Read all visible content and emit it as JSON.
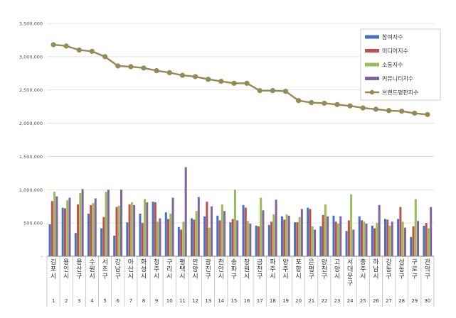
{
  "chart_data": {
    "type": "bar",
    "title": "",
    "xlabel": "",
    "ylabel": "",
    "ylim": [
      0,
      3500000
    ],
    "yticks": [
      0,
      500000,
      1000000,
      1500000,
      2000000,
      2500000,
      3000000,
      3500000
    ],
    "ytick_labels": [
      "-",
      "500,000",
      "1,000,000",
      "1,500,000",
      "2,000,000",
      "2,500,000",
      "3,000,000",
      "3,500,000"
    ],
    "grid": true,
    "legend_position": "top-right",
    "categories": [
      "김포시",
      "용인시",
      "용산구",
      "수원시",
      "서초구",
      "강남구",
      "아산시",
      "화성시",
      "청주시",
      "구리시",
      "평택시",
      "안양시",
      "광진구",
      "천안시",
      "송파구",
      "창원시",
      "금천구",
      "파주시",
      "양주시",
      "포항시",
      "은평구",
      "양천구",
      "고양시",
      "서대문구",
      "충주시",
      "하남시",
      "강동구",
      "성동구",
      "구로구",
      "관악구"
    ],
    "ranks": [
      "1",
      "2",
      "3",
      "4",
      "5",
      "6",
      "7",
      "8",
      "9",
      "10",
      "11",
      "12",
      "13",
      "14",
      "15",
      "16",
      "17",
      "18",
      "19",
      "20",
      "21",
      "22",
      "23",
      "24",
      "25",
      "26",
      "27",
      "28",
      "29",
      "30"
    ],
    "series": [
      {
        "name": "참여지수",
        "type": "bar",
        "color": "#4472c4",
        "values": [
          480000,
          730000,
          350000,
          640000,
          420000,
          310000,
          510000,
          640000,
          820000,
          660000,
          440000,
          570000,
          600000,
          610000,
          510000,
          770000,
          460000,
          470000,
          600000,
          510000,
          730000,
          450000,
          610000,
          380000,
          600000,
          460000,
          560000,
          560000,
          290000,
          460000
        ]
      },
      {
        "name": "미디어지수",
        "type": "bar",
        "color": "#c0504d",
        "values": [
          830000,
          720000,
          780000,
          770000,
          590000,
          740000,
          780000,
          500000,
          810000,
          560000,
          400000,
          550000,
          820000,
          540000,
          560000,
          730000,
          450000,
          520000,
          550000,
          510000,
          710000,
          620000,
          520000,
          540000,
          540000,
          420000,
          550000,
          740000,
          450000,
          500000
        ]
      },
      {
        "name": "소통지수",
        "type": "bar",
        "color": "#9bbb59",
        "values": [
          970000,
          840000,
          950000,
          800000,
          970000,
          760000,
          810000,
          860000,
          520000,
          640000,
          520000,
          680000,
          430000,
          780000,
          1000000,
          530000,
          880000,
          630000,
          630000,
          590000,
          450000,
          780000,
          490000,
          930000,
          520000,
          500000,
          460000,
          520000,
          860000,
          420000
        ]
      },
      {
        "name": "커뮤니티지수",
        "type": "bar",
        "color": "#8064a2",
        "values": [
          900000,
          880000,
          1010000,
          870000,
          1000000,
          1000000,
          770000,
          810000,
          570000,
          880000,
          1340000,
          890000,
          750000,
          680000,
          540000,
          490000,
          690000,
          850000,
          610000,
          710000,
          400000,
          600000,
          600000,
          400000,
          490000,
          770000,
          520000,
          430000,
          530000,
          740000
        ]
      },
      {
        "name": "브랜드평판지수",
        "type": "line",
        "color": "#948a54",
        "values": [
          3180000,
          3160000,
          3100000,
          3080000,
          3000000,
          2860000,
          2850000,
          2830000,
          2790000,
          2760000,
          2720000,
          2700000,
          2660000,
          2630000,
          2600000,
          2600000,
          2490000,
          2490000,
          2480000,
          2340000,
          2310000,
          2300000,
          2280000,
          2260000,
          2230000,
          2210000,
          2190000,
          2180000,
          2150000,
          2130000
        ]
      }
    ]
  }
}
